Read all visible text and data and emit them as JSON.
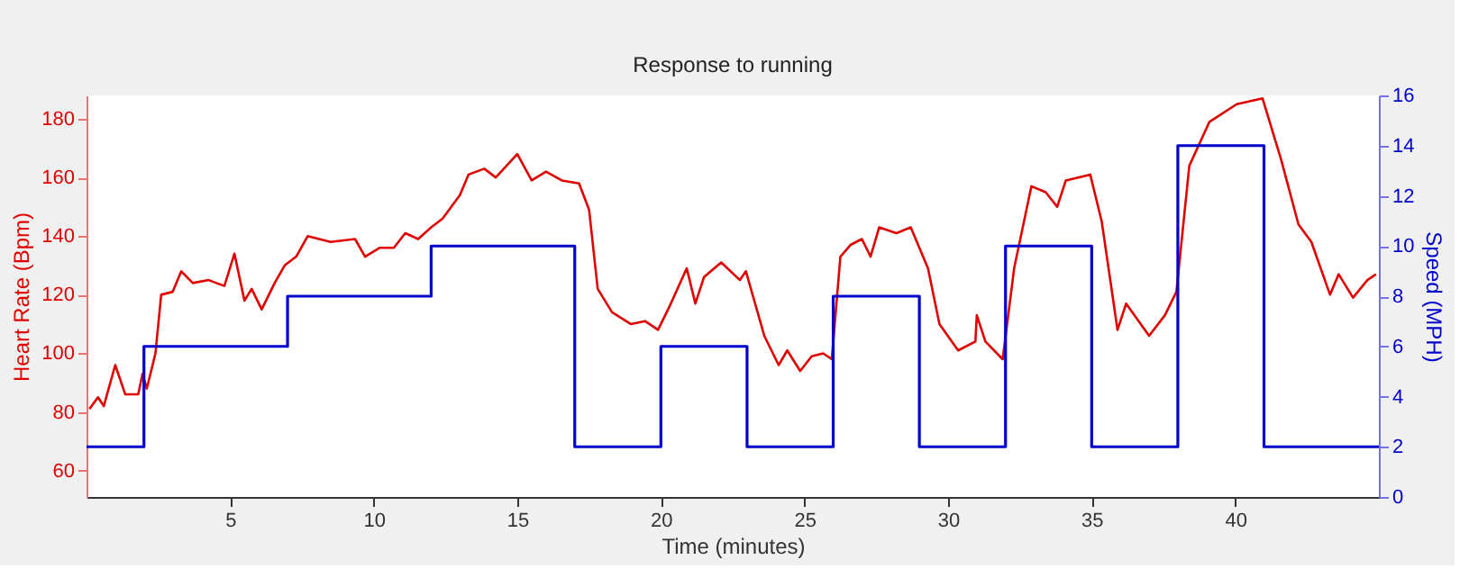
{
  "chart_data": {
    "type": "line",
    "title": "Response to running",
    "xlabel": "Time (minutes)",
    "ylabel": "Heart Rate (Bpm)",
    "y2label": "Speed (MPH)",
    "xlim": [
      0,
      45
    ],
    "xticks": [
      5,
      10,
      15,
      20,
      25,
      30,
      35,
      40
    ],
    "ylim": [
      51,
      188
    ],
    "yticks": [
      60,
      80,
      100,
      120,
      140,
      160,
      180
    ],
    "y2lim": [
      0,
      16
    ],
    "y2ticks": [
      0,
      2,
      4,
      6,
      8,
      10,
      12,
      14,
      16
    ],
    "grid": false,
    "series": [
      {
        "color": "#e00000",
        "x": [
          0.1,
          0.4,
          0.6,
          1.0,
          1.35,
          1.8,
          1.95,
          2.1,
          2.4,
          2.6,
          3.0,
          3.3,
          3.7,
          4.25,
          4.8,
          5.15,
          5.5,
          5.75,
          6.1,
          6.55,
          6.9,
          7.3,
          7.7,
          8.5,
          9.35,
          9.7,
          10.2,
          10.7,
          11.1,
          11.55,
          12.0,
          12.4,
          13.0,
          13.3,
          13.85,
          14.25,
          15.0,
          15.5,
          16.0,
          16.55,
          17.15,
          17.5,
          17.8,
          18.3,
          18.95,
          19.45,
          19.9,
          20.3,
          20.9,
          21.2,
          21.5,
          22.1,
          22.75,
          22.96,
          23.6,
          24.1,
          24.4,
          24.85,
          25.25,
          25.65,
          25.95,
          26.25,
          26.6,
          27.0,
          27.3,
          27.6,
          28.2,
          28.7,
          29.3,
          29.7,
          30.35,
          30.95,
          31.0,
          31.3,
          31.9,
          32.3,
          32.9,
          33.4,
          33.8,
          34.1,
          34.95,
          35.35,
          35.9,
          36.2,
          37.0,
          37.55,
          37.95,
          38.4,
          39.1,
          40.05,
          40.95,
          41.6,
          42.2,
          42.65,
          43.3,
          43.6,
          44.1,
          44.6,
          44.9
        ],
        "values": [
          81,
          85,
          82,
          96,
          86,
          86,
          93,
          88,
          100,
          120,
          121,
          128,
          124,
          125,
          123,
          134,
          118,
          122,
          115,
          124,
          130,
          133,
          140,
          138,
          139,
          133,
          136,
          136,
          141,
          139,
          143,
          146,
          154,
          161,
          163,
          160,
          168,
          159,
          162,
          159,
          158,
          149,
          122,
          114,
          110,
          111,
          108,
          116,
          129,
          117,
          126,
          131,
          125,
          128,
          106,
          96,
          101,
          94,
          99,
          100,
          98,
          133,
          137,
          139,
          133,
          143,
          141,
          143,
          129,
          110,
          101,
          104,
          113,
          104,
          98,
          129,
          157,
          155,
          150,
          159,
          161,
          145,
          108,
          117,
          106,
          113,
          121,
          164,
          179,
          185,
          187,
          166,
          144,
          138,
          120,
          127,
          119,
          125,
          127
        ]
      },
      {
        "type": "step",
        "axis": "y2",
        "color": "#0000cc",
        "x": [
          0,
          2,
          7,
          12,
          17,
          20,
          23,
          26,
          29,
          32,
          35,
          38,
          41,
          45
        ],
        "values": [
          2,
          6,
          8,
          10,
          2,
          6,
          2,
          8,
          2,
          10,
          2,
          14,
          2,
          2
        ]
      }
    ]
  }
}
